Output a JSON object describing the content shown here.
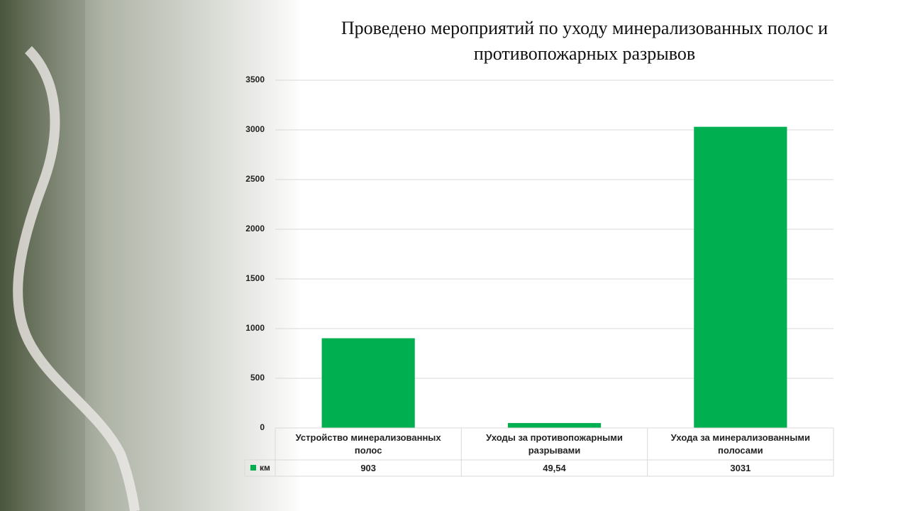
{
  "chart_data": {
    "type": "bar",
    "title": "Проведено мероприятий по уходу минерализованных полос и противопожарных разрывов",
    "categories": [
      "Устройство минерализованных полос",
      "Уходы за противопожарными разрывами",
      "Ухода за минерализованными полосами"
    ],
    "series": [
      {
        "name": "км",
        "color": "#00b050",
        "values": [
          903,
          49.54,
          3031
        ],
        "value_labels": [
          "903",
          "49,54",
          "3031"
        ]
      }
    ],
    "ylim": [
      0,
      3500
    ],
    "yticks": [
      0,
      500,
      1000,
      1500,
      2000,
      2500,
      3000,
      3500
    ],
    "grid": true,
    "data_table": true
  }
}
